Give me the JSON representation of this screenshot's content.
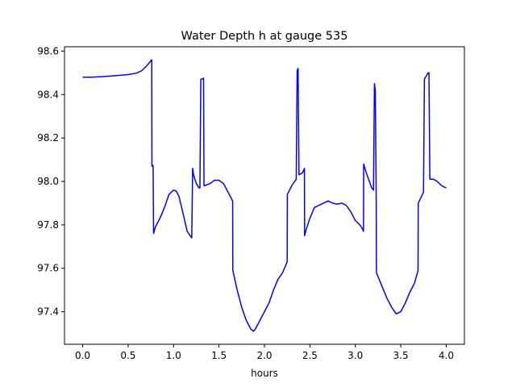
{
  "chart_data": {
    "type": "line",
    "title": "Water Depth h at gauge 535",
    "xlabel": "hours",
    "ylabel": "",
    "xlim": [
      -0.2,
      4.2
    ],
    "ylim": [
      97.25,
      98.62
    ],
    "xticks": [
      0.0,
      0.5,
      1.0,
      1.5,
      2.0,
      2.5,
      3.0,
      3.5,
      4.0
    ],
    "xtick_labels": [
      "0.0",
      "0.5",
      "1.0",
      "1.5",
      "2.0",
      "2.5",
      "3.0",
      "3.5",
      "4.0"
    ],
    "yticks": [
      97.4,
      97.6,
      97.8,
      98.0,
      98.2,
      98.4,
      98.6
    ],
    "ytick_labels": [
      "97.4",
      "97.6",
      "97.8",
      "98.0",
      "98.2",
      "98.4",
      "98.6"
    ],
    "grid": false,
    "legend": "none",
    "series": [
      {
        "color": "#0000ff",
        "x": [
          0.0,
          0.1,
          0.2,
          0.3,
          0.4,
          0.5,
          0.55,
          0.6,
          0.65,
          0.7,
          0.74,
          0.76,
          0.762,
          0.77,
          0.775,
          0.78,
          0.8,
          0.85,
          0.9,
          0.95,
          1.0,
          1.03,
          1.06,
          1.1,
          1.15,
          1.2,
          1.21,
          1.22,
          1.25,
          1.28,
          1.29,
          1.3,
          1.33,
          1.335,
          1.34,
          1.4,
          1.45,
          1.5,
          1.55,
          1.6,
          1.65,
          1.652,
          1.7,
          1.75,
          1.8,
          1.85,
          1.88,
          1.9,
          1.95,
          2.0,
          2.05,
          2.1,
          2.15,
          2.2,
          2.25,
          2.252,
          2.3,
          2.35,
          2.36,
          2.37,
          2.38,
          2.42,
          2.44,
          2.442,
          2.46,
          2.5,
          2.55,
          2.6,
          2.65,
          2.7,
          2.75,
          2.8,
          2.85,
          2.9,
          2.95,
          3.0,
          3.05,
          3.08,
          3.09,
          3.092,
          3.12,
          3.18,
          3.2,
          3.21,
          3.22,
          3.23,
          3.232,
          3.3,
          3.35,
          3.4,
          3.45,
          3.5,
          3.55,
          3.6,
          3.65,
          3.69,
          3.692,
          3.75,
          3.76,
          3.8,
          3.81,
          3.82,
          3.86,
          3.9,
          3.95,
          4.0
        ],
        "y": [
          98.48,
          98.48,
          98.482,
          98.485,
          98.488,
          98.492,
          98.495,
          98.5,
          98.51,
          98.53,
          98.55,
          98.56,
          98.07,
          98.075,
          98.07,
          97.76,
          97.79,
          97.83,
          97.88,
          97.94,
          97.96,
          97.955,
          97.93,
          97.86,
          97.77,
          97.74,
          98.06,
          98.03,
          97.99,
          97.97,
          97.97,
          98.47,
          98.475,
          97.98,
          97.98,
          97.99,
          98.005,
          98.005,
          97.99,
          97.95,
          97.91,
          97.59,
          97.5,
          97.42,
          97.36,
          97.32,
          97.31,
          97.32,
          97.36,
          97.4,
          97.44,
          97.5,
          97.55,
          97.58,
          97.63,
          97.94,
          97.98,
          98.01,
          98.51,
          98.52,
          98.03,
          98.04,
          98.06,
          97.75,
          97.78,
          97.83,
          97.88,
          97.89,
          97.9,
          97.91,
          97.9,
          97.895,
          97.9,
          97.89,
          97.86,
          97.82,
          97.8,
          97.78,
          97.77,
          98.08,
          98.04,
          97.97,
          97.96,
          98.45,
          98.42,
          97.9,
          97.58,
          97.51,
          97.46,
          97.42,
          97.39,
          97.4,
          97.44,
          97.49,
          97.53,
          97.59,
          97.9,
          97.95,
          98.47,
          98.5,
          98.5,
          98.01,
          98.01,
          98.0,
          97.98,
          97.97
        ]
      }
    ]
  }
}
